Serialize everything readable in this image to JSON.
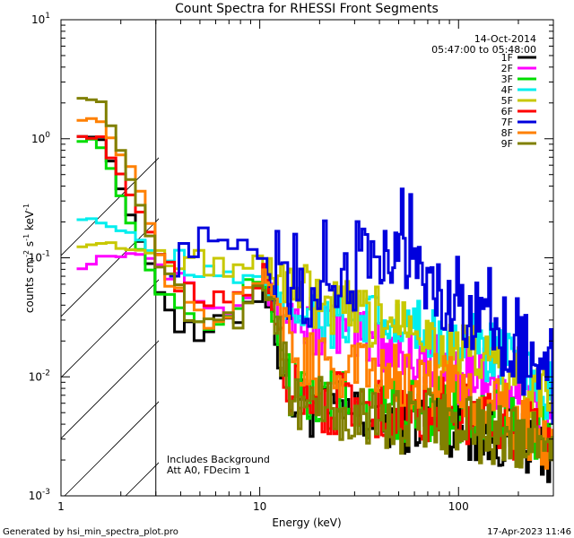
{
  "chart_data": {
    "type": "line",
    "title": "Count Spectra for RHESSI Front Segments",
    "xlabel": "Energy (keV)",
    "ylabel_main": "counts cm",
    "ylabel_exp1": "-2",
    "ylabel_mid": " s",
    "ylabel_exp2": "-1",
    "ylabel_end": " keV",
    "ylabel_exp3": "-1",
    "x_scale": "log",
    "y_scale": "log",
    "xlim": [
      1,
      300
    ],
    "ylim": [
      0.001,
      10
    ],
    "x_ticks": [
      {
        "value": 1,
        "label": "1"
      },
      {
        "value": 10,
        "label": "10"
      },
      {
        "value": 100,
        "label": "100"
      }
    ],
    "y_ticks": [
      {
        "value": 10,
        "base": "10",
        "exp": "1"
      },
      {
        "value": 1,
        "base": "10",
        "exp": "0"
      },
      {
        "value": 0.1,
        "base": "10",
        "exp": "-1"
      },
      {
        "value": 0.01,
        "base": "10",
        "exp": "-2"
      },
      {
        "value": 0.001,
        "base": "10",
        "exp": "-3"
      }
    ],
    "hatched_region_max_energy": 3.0,
    "annotations": {
      "date": "14-Oct-2014",
      "time_range": "05:47:00 to 05:48:00",
      "background_note": "Includes Background",
      "attenuator_note": "Att A0, FDecim 1"
    },
    "footer": {
      "generated_by": "Generated by hsi_min_spectra_plot.pro",
      "timestamp": "17-Apr-2023 11:46"
    },
    "series": [
      {
        "name": "1F",
        "color": "#000000",
        "anchors": [
          [
            1.2,
            1.1
          ],
          [
            1.5,
            1.0
          ],
          [
            2.2,
            0.2
          ],
          [
            3,
            0.05
          ],
          [
            4,
            0.022
          ],
          [
            5,
            0.02
          ],
          [
            7,
            0.03
          ],
          [
            10,
            0.06
          ],
          [
            11,
            0.04
          ],
          [
            14,
            0.006
          ],
          [
            20,
            0.005
          ],
          [
            40,
            0.004
          ],
          [
            80,
            0.004
          ],
          [
            150,
            0.003
          ],
          [
            250,
            0.0025
          ],
          [
            300,
            0.002
          ]
        ]
      },
      {
        "name": "2F",
        "color": "#ff00ff",
        "anchors": [
          [
            1.2,
            0.085
          ],
          [
            1.5,
            0.1
          ],
          [
            2.2,
            0.11
          ],
          [
            3,
            0.09
          ],
          [
            4,
            0.07
          ],
          [
            5,
            0.05
          ],
          [
            7,
            0.04
          ],
          [
            10,
            0.07
          ],
          [
            11,
            0.05
          ],
          [
            14,
            0.03
          ],
          [
            20,
            0.025
          ],
          [
            40,
            0.018
          ],
          [
            80,
            0.012
          ],
          [
            150,
            0.008
          ],
          [
            250,
            0.005
          ],
          [
            300,
            0.005
          ]
        ]
      },
      {
        "name": "3F",
        "color": "#00dd00",
        "anchors": [
          [
            1.2,
            1.0
          ],
          [
            1.5,
            0.9
          ],
          [
            2.2,
            0.16
          ],
          [
            3,
            0.05
          ],
          [
            4,
            0.03
          ],
          [
            5,
            0.025
          ],
          [
            7,
            0.035
          ],
          [
            10,
            0.07
          ],
          [
            11,
            0.05
          ],
          [
            14,
            0.008
          ],
          [
            20,
            0.006
          ],
          [
            40,
            0.005
          ],
          [
            80,
            0.005
          ],
          [
            150,
            0.004
          ],
          [
            250,
            0.003
          ],
          [
            300,
            0.003
          ]
        ]
      },
      {
        "name": "4F",
        "color": "#00eeee",
        "anchors": [
          [
            1.2,
            0.22
          ],
          [
            1.5,
            0.2
          ],
          [
            2.2,
            0.15
          ],
          [
            3,
            0.1
          ],
          [
            4,
            0.09
          ],
          [
            5,
            0.075
          ],
          [
            7,
            0.06
          ],
          [
            10,
            0.06
          ],
          [
            11,
            0.05
          ],
          [
            14,
            0.04
          ],
          [
            20,
            0.03
          ],
          [
            40,
            0.025
          ],
          [
            80,
            0.02
          ],
          [
            150,
            0.015
          ],
          [
            250,
            0.008
          ],
          [
            300,
            0.006
          ]
        ]
      },
      {
        "name": "5F",
        "color": "#c8c800",
        "anchors": [
          [
            1.2,
            0.13
          ],
          [
            1.5,
            0.13
          ],
          [
            2.2,
            0.12
          ],
          [
            3,
            0.11
          ],
          [
            4,
            0.1
          ],
          [
            5,
            0.09
          ],
          [
            7,
            0.08
          ],
          [
            10,
            0.08
          ],
          [
            12,
            0.07
          ],
          [
            15,
            0.05
          ],
          [
            20,
            0.035
          ],
          [
            40,
            0.028
          ],
          [
            55,
            0.035
          ],
          [
            70,
            0.02
          ],
          [
            100,
            0.015
          ],
          [
            150,
            0.012
          ],
          [
            250,
            0.007
          ],
          [
            300,
            0.006
          ]
        ]
      },
      {
        "name": "6F",
        "color": "#ff0000",
        "anchors": [
          [
            1.2,
            1.1
          ],
          [
            1.5,
            1.0
          ],
          [
            2.2,
            0.3
          ],
          [
            3,
            0.1
          ],
          [
            4,
            0.05
          ],
          [
            5,
            0.04
          ],
          [
            7,
            0.04
          ],
          [
            10,
            0.08
          ],
          [
            11,
            0.05
          ],
          [
            14,
            0.008
          ],
          [
            20,
            0.006
          ],
          [
            40,
            0.005
          ],
          [
            80,
            0.005
          ],
          [
            150,
            0.004
          ],
          [
            250,
            0.003
          ],
          [
            300,
            0.003
          ]
        ]
      },
      {
        "name": "7F",
        "color": "#0000dd",
        "anchors": [
          [
            3.5,
            0.09
          ],
          [
            5,
            0.14
          ],
          [
            7,
            0.12
          ],
          [
            10,
            0.1
          ],
          [
            12,
            0.05
          ],
          [
            15,
            0.04
          ],
          [
            20,
            0.045
          ],
          [
            30,
            0.06
          ],
          [
            40,
            0.08
          ],
          [
            50,
            0.11
          ],
          [
            70,
            0.06
          ],
          [
            100,
            0.03
          ],
          [
            150,
            0.02
          ],
          [
            200,
            0.012
          ],
          [
            250,
            0.01
          ],
          [
            300,
            0.006
          ]
        ]
      },
      {
        "name": "8F",
        "color": "#ff8000",
        "anchors": [
          [
            1.2,
            1.5
          ],
          [
            1.5,
            1.4
          ],
          [
            2.2,
            0.5
          ],
          [
            3,
            0.1
          ],
          [
            4,
            0.04
          ],
          [
            5,
            0.03
          ],
          [
            7,
            0.035
          ],
          [
            10,
            0.07
          ],
          [
            11,
            0.05
          ],
          [
            14,
            0.015
          ],
          [
            20,
            0.012
          ],
          [
            40,
            0.01
          ],
          [
            80,
            0.008
          ],
          [
            150,
            0.005
          ],
          [
            250,
            0.003
          ],
          [
            300,
            0.003
          ]
        ]
      },
      {
        "name": "9F",
        "color": "#808000",
        "anchors": [
          [
            1.2,
            2.3
          ],
          [
            1.5,
            2.0
          ],
          [
            2.2,
            0.4
          ],
          [
            3,
            0.08
          ],
          [
            4,
            0.04
          ],
          [
            5,
            0.03
          ],
          [
            7,
            0.03
          ],
          [
            10,
            0.06
          ],
          [
            11,
            0.05
          ],
          [
            14,
            0.007
          ],
          [
            20,
            0.005
          ],
          [
            40,
            0.004
          ],
          [
            80,
            0.004
          ],
          [
            150,
            0.003
          ],
          [
            250,
            0.003
          ],
          [
            300,
            0.0025
          ]
        ]
      }
    ]
  }
}
